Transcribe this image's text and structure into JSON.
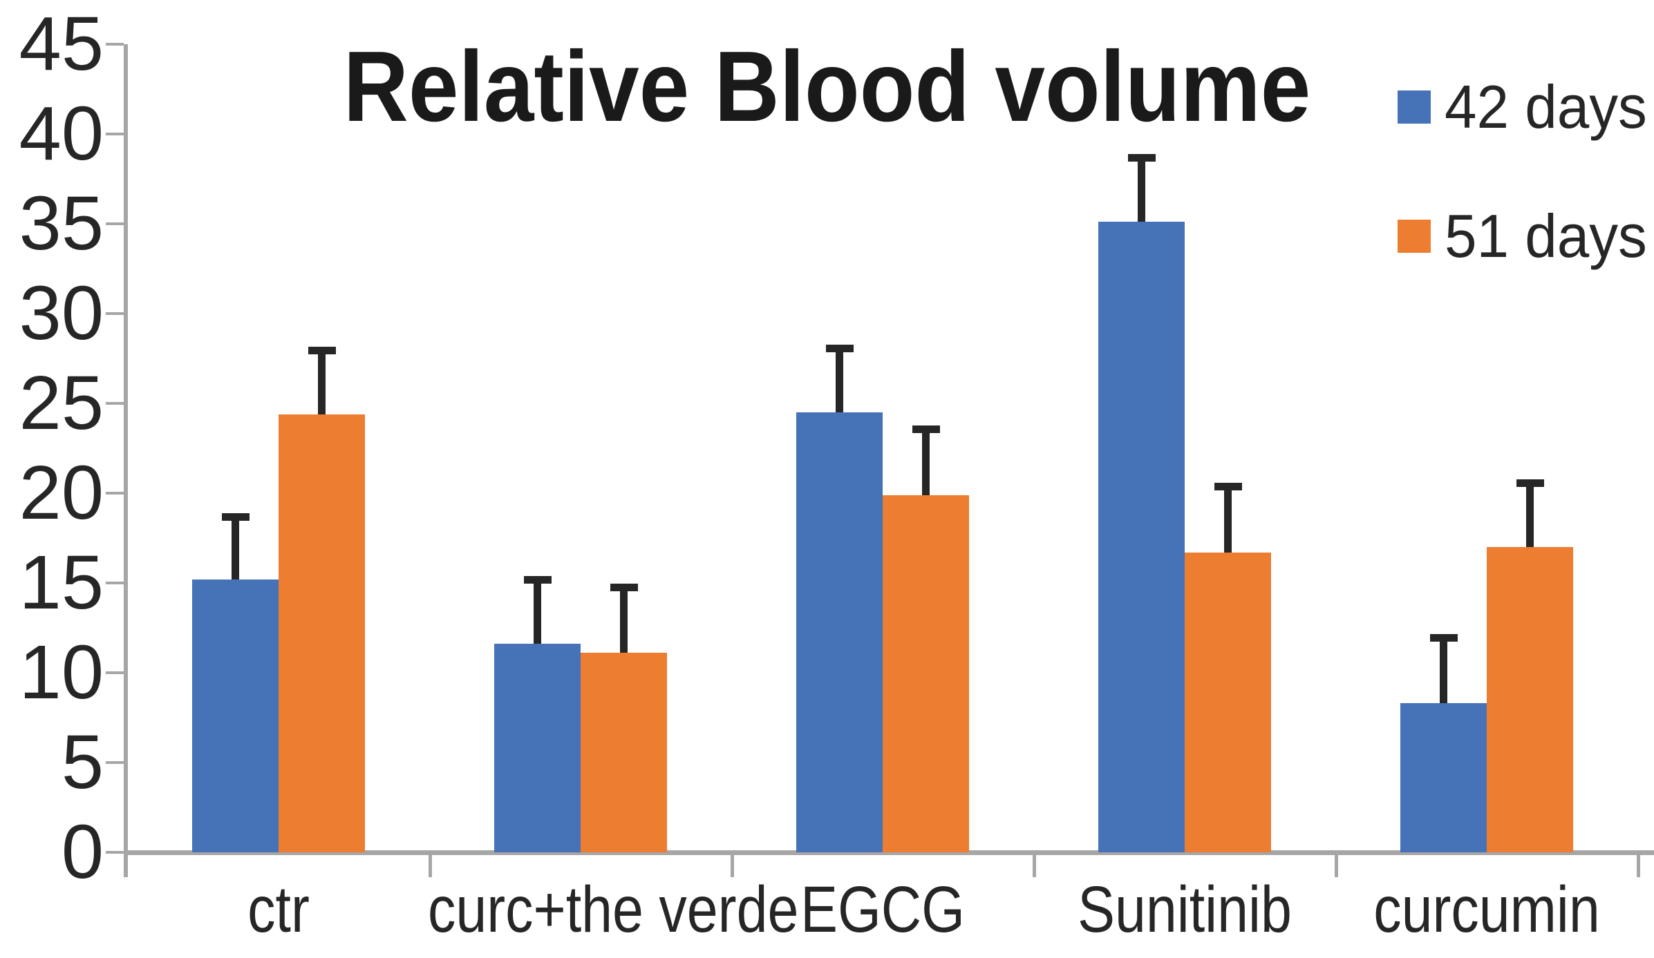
{
  "title": "Relative Blood volume",
  "legend": [
    {
      "label": "42 days",
      "color": "#4673B8"
    },
    {
      "label": "51 days",
      "color": "#ED7D31"
    }
  ],
  "colors": {
    "series1": "#4673B8",
    "series2": "#ED7D31",
    "axis": "#a6a6a6",
    "error_bar": "#262626",
    "text": "#262626",
    "title_text": "#1a1a1a"
  },
  "chart_data": {
    "type": "bar",
    "title": "Relative Blood volume",
    "categories": [
      "ctr",
      "curc+the verde",
      "EGCG",
      "Sunitinib",
      "curcumin"
    ],
    "series": [
      {
        "name": "42 days",
        "color": "#4673B8",
        "values": [
          15.2,
          11.6,
          24.5,
          35.1,
          8.3
        ],
        "errors": [
          3.4,
          3.5,
          3.5,
          3.5,
          3.6
        ]
      },
      {
        "name": "51 days",
        "color": "#ED7D31",
        "values": [
          24.4,
          11.1,
          19.9,
          16.7,
          17.0
        ],
        "errors": [
          3.5,
          3.6,
          3.6,
          3.6,
          3.5
        ]
      }
    ],
    "xlabel": "",
    "ylabel": "",
    "ylim": [
      0,
      45
    ],
    "ytick_step": 5,
    "y_ticks": [
      "0",
      "5",
      "10",
      "15",
      "20",
      "25",
      "30",
      "35",
      "40",
      "45"
    ],
    "grid": false,
    "error_bars": true,
    "legend_position": "top-right"
  }
}
